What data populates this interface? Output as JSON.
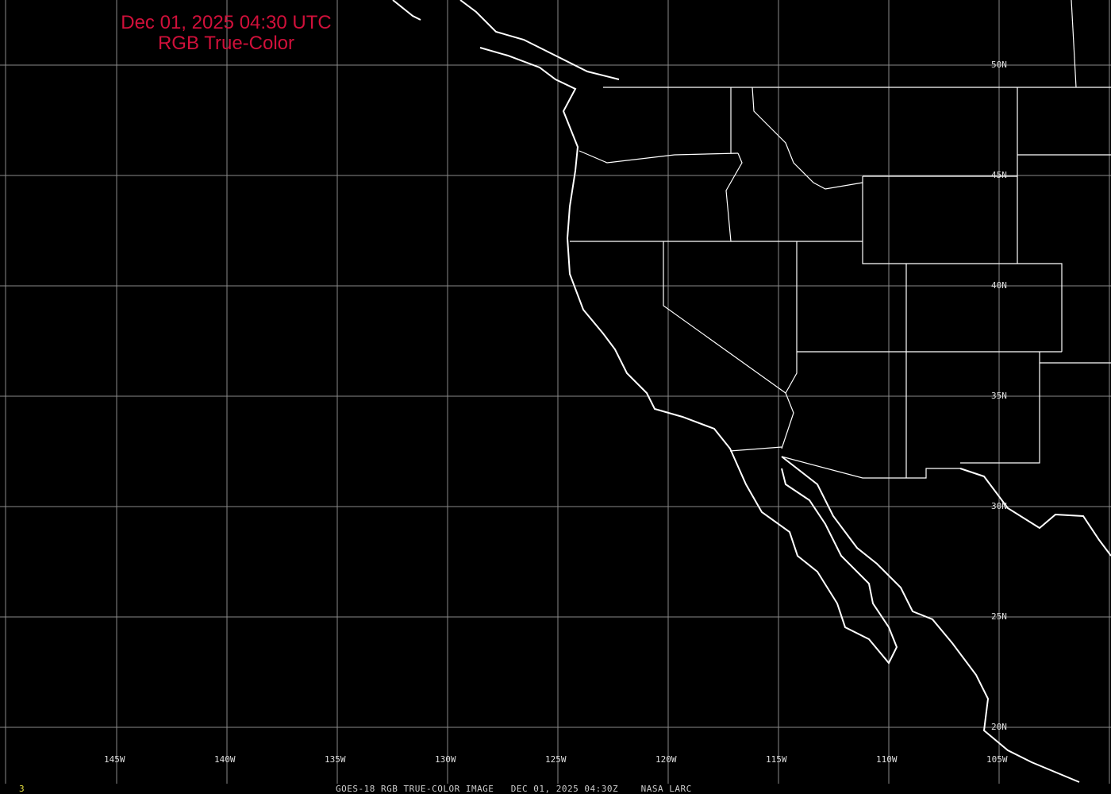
{
  "title": {
    "line1": "Dec 01, 2025 04:30 UTC",
    "line2": "RGB True-Color"
  },
  "longitude_labels": [
    "145W",
    "140W",
    "135W",
    "130W",
    "125W",
    "120W",
    "115W",
    "110W",
    "105W"
  ],
  "latitude_labels": [
    "50N",
    "45N",
    "40N",
    "35N",
    "30N",
    "25N",
    "20N"
  ],
  "footer": "GOES-18 RGB TRUE-COLOR IMAGE   DEC 01, 2025 04:30Z    NASA LARC",
  "frame_number": "3",
  "colors": {
    "title": "#d0103a",
    "grid": "#8a8a8a",
    "coast": "#ffffff",
    "frame_number": "#e6e040"
  }
}
